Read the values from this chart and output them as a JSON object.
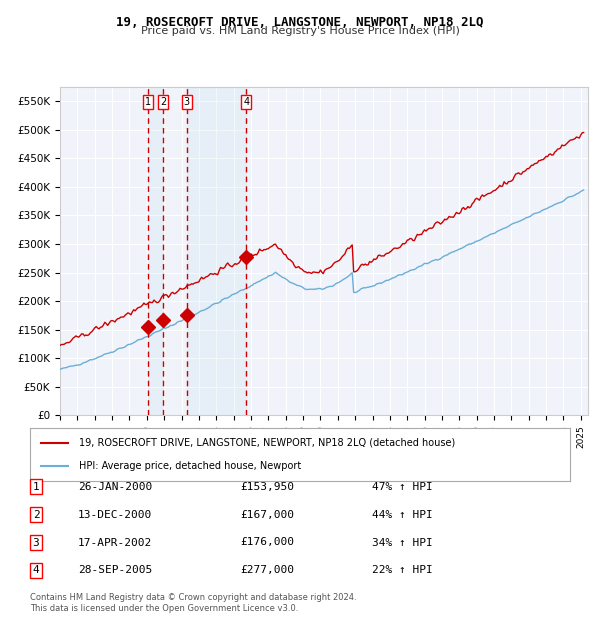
{
  "title": "19, ROSECROFT DRIVE, LANGSTONE, NEWPORT, NP18 2LQ",
  "subtitle": "Price paid vs. HM Land Registry's House Price Index (HPI)",
  "ylim": [
    0,
    575000
  ],
  "yticks": [
    0,
    50000,
    100000,
    150000,
    200000,
    250000,
    300000,
    350000,
    400000,
    450000,
    500000,
    550000
  ],
  "ytick_labels": [
    "£0",
    "£50K",
    "£100K",
    "£150K",
    "£200K",
    "£250K",
    "£300K",
    "£350K",
    "£400K",
    "£450K",
    "£500K",
    "£550K"
  ],
  "x_start_year": 1995,
  "x_end_year": 2025,
  "sale_dates": [
    "2000-01-26",
    "2000-12-13",
    "2002-04-17",
    "2005-09-28"
  ],
  "sale_prices": [
    153950,
    167000,
    176000,
    277000
  ],
  "sale_labels": [
    "1",
    "2",
    "3",
    "4"
  ],
  "hpi_color": "#6baed6",
  "price_color": "#cc0000",
  "background_color": "#f0f4fa",
  "legend_entries": [
    "19, ROSECROFT DRIVE, LANGSTONE, NEWPORT, NP18 2LQ (detached house)",
    "HPI: Average price, detached house, Newport"
  ],
  "table_rows": [
    [
      "1",
      "26-JAN-2000",
      "£153,950",
      "47% ↑ HPI"
    ],
    [
      "2",
      "13-DEC-2000",
      "£167,000",
      "44% ↑ HPI"
    ],
    [
      "3",
      "17-APR-2002",
      "£176,000",
      "34% ↑ HPI"
    ],
    [
      "4",
      "28-SEP-2005",
      "£277,000",
      "22% ↑ HPI"
    ]
  ],
  "footnote": "Contains HM Land Registry data © Crown copyright and database right 2024.\nThis data is licensed under the Open Government Licence v3.0."
}
